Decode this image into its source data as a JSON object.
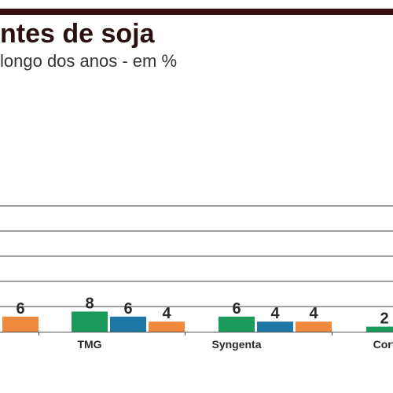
{
  "title": "ntes de soja",
  "subtitle": "longo dos anos - em %",
  "colors": {
    "rule": "#3a0f0f",
    "title": "#2b1010",
    "subtitle": "#333333",
    "grid": "#444444",
    "axis": "#555555",
    "text": "#2a2a2a"
  },
  "chart_data": {
    "type": "bar",
    "title": "ntes de soja",
    "subtitle": "longo dos anos - em %",
    "xlabel": "",
    "ylabel": "",
    "ylim": [
      0,
      50
    ],
    "grid": true,
    "categories": [
      "",
      "TMG",
      "Syngenta",
      "Cort"
    ],
    "series": [
      {
        "color": "#1a9b5b",
        "values": [
          null,
          8,
          6,
          2
        ]
      },
      {
        "color": "#1f77a6",
        "values": [
          null,
          6,
          4,
          null
        ]
      },
      {
        "color": "#ef8a3c",
        "values": [
          6,
          4,
          4,
          null
        ]
      }
    ]
  }
}
